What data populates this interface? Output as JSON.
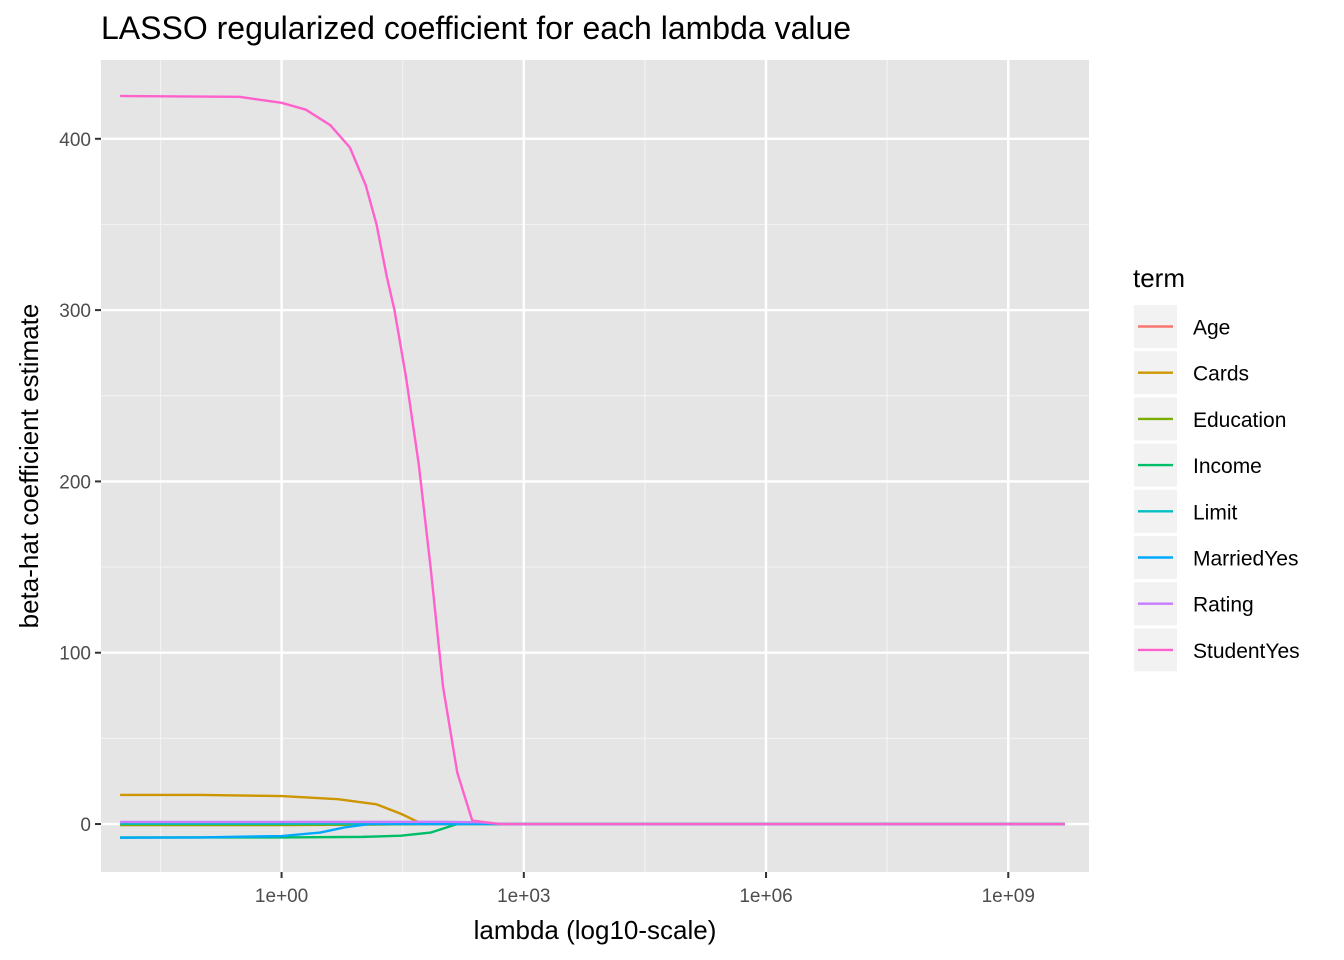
{
  "chart_data": {
    "type": "line",
    "title": "LASSO regularized coefficient for each lambda value",
    "xlabel": "lambda (log10-scale)",
    "ylabel": "beta-hat coefficient estimate",
    "x_scale": "log10",
    "x_ticks": [
      {
        "value": 1,
        "label": "1e+00"
      },
      {
        "value": 1000,
        "label": "1e+03"
      },
      {
        "value": 1000000,
        "label": "1e+06"
      },
      {
        "value": 1000000000,
        "label": "1e+09"
      }
    ],
    "y_ticks": [
      0,
      100,
      200,
      300,
      400
    ],
    "xlim": [
      0.0058,
      10000000000.0
    ],
    "ylim": [
      -28,
      446
    ],
    "grid": true,
    "background": "#e5e5e5",
    "legend": {
      "title": "term",
      "position": "right"
    },
    "series": [
      {
        "name": "Age",
        "color": "#F8766D",
        "points": [
          [
            0.01,
            -0.6
          ],
          [
            1,
            -0.6
          ],
          [
            3,
            -0.5
          ],
          [
            10,
            -0.3
          ],
          [
            30,
            -0.1
          ],
          [
            100,
            0
          ],
          [
            1000,
            0
          ],
          [
            5000000000.0,
            0
          ]
        ]
      },
      {
        "name": "Cards",
        "color": "#CD9600",
        "points": [
          [
            0.01,
            17
          ],
          [
            0.1,
            17
          ],
          [
            1,
            16.3
          ],
          [
            5,
            14.5
          ],
          [
            15,
            11.5
          ],
          [
            30,
            6
          ],
          [
            50,
            1
          ],
          [
            100,
            0.6
          ],
          [
            200,
            0.5
          ],
          [
            500,
            0
          ],
          [
            5000000000.0,
            0
          ]
        ]
      },
      {
        "name": "Education",
        "color": "#7CAE00",
        "points": [
          [
            0.01,
            -0.5
          ],
          [
            1,
            -0.5
          ],
          [
            10,
            -0.3
          ],
          [
            50,
            -0.1
          ],
          [
            100,
            0
          ],
          [
            5000000000.0,
            0
          ]
        ]
      },
      {
        "name": "Income",
        "color": "#00BE67",
        "points": [
          [
            0.01,
            -7.8
          ],
          [
            1,
            -7.8
          ],
          [
            10,
            -7.5
          ],
          [
            30,
            -6.8
          ],
          [
            70,
            -5
          ],
          [
            110,
            -2
          ],
          [
            150,
            0
          ],
          [
            300,
            0.3
          ],
          [
            500,
            0
          ],
          [
            5000000000.0,
            0
          ]
        ]
      },
      {
        "name": "Limit",
        "color": "#00BFC4",
        "points": [
          [
            0.01,
            0.2
          ],
          [
            1,
            0.2
          ],
          [
            100,
            0.3
          ],
          [
            300,
            0.2
          ],
          [
            500,
            0
          ],
          [
            5000000000.0,
            0
          ]
        ]
      },
      {
        "name": "MarriedYes",
        "color": "#00A9FF",
        "points": [
          [
            0.01,
            -8
          ],
          [
            0.1,
            -7.8
          ],
          [
            1,
            -7
          ],
          [
            3,
            -5
          ],
          [
            6,
            -2
          ],
          [
            12,
            0
          ],
          [
            500,
            0
          ],
          [
            5000000000.0,
            0
          ]
        ]
      },
      {
        "name": "Rating",
        "color": "#C77CFF",
        "points": [
          [
            0.01,
            1.2
          ],
          [
            1,
            1.2
          ],
          [
            100,
            1.3
          ],
          [
            300,
            1
          ],
          [
            550,
            0
          ],
          [
            5000000000.0,
            0
          ]
        ]
      },
      {
        "name": "StudentYes",
        "color": "#FF61CC",
        "points": [
          [
            0.01,
            425
          ],
          [
            0.3,
            424.5
          ],
          [
            1,
            421
          ],
          [
            2,
            417
          ],
          [
            4,
            408
          ],
          [
            7,
            395
          ],
          [
            11,
            373
          ],
          [
            15,
            350
          ],
          [
            20,
            320
          ],
          [
            25,
            300
          ],
          [
            35,
            260
          ],
          [
            50,
            210
          ],
          [
            70,
            150
          ],
          [
            100,
            80
          ],
          [
            150,
            30
          ],
          [
            230,
            2
          ],
          [
            500,
            0
          ],
          [
            5000000000.0,
            0
          ]
        ]
      }
    ]
  }
}
